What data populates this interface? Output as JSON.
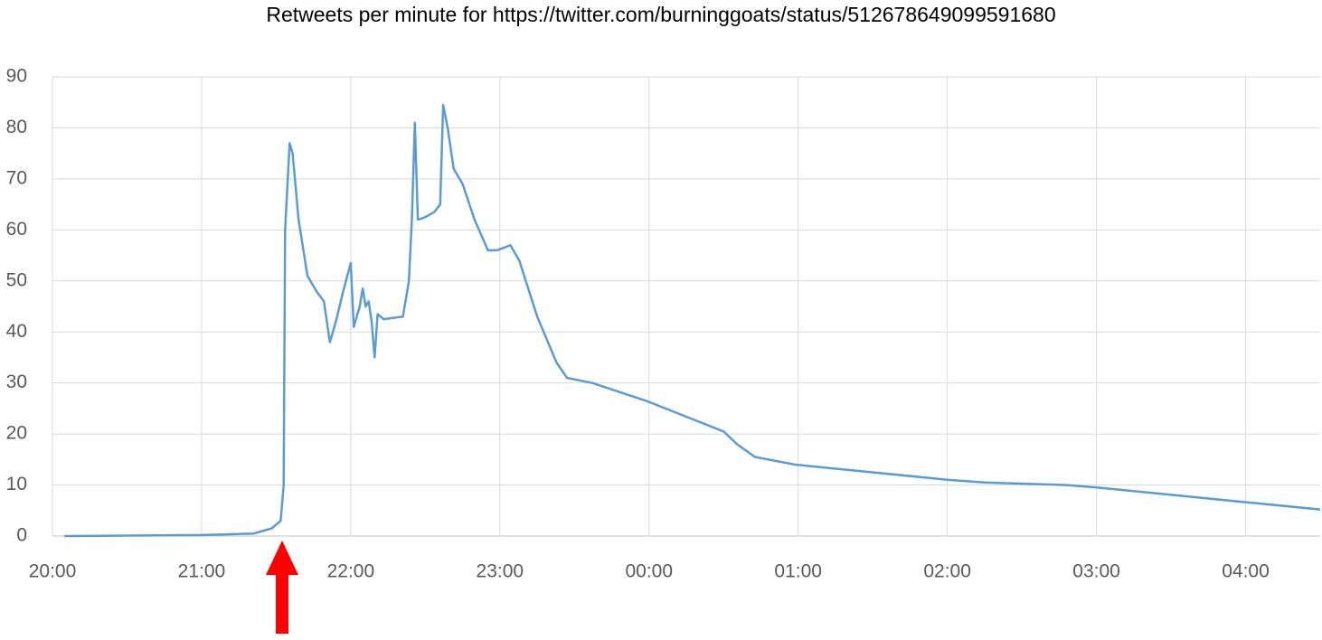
{
  "chart_data": {
    "type": "line",
    "title": "Retweets per minute for https://twitter.com/burninggoats/status/512678649099591680",
    "x": [
      0.08,
      1.0,
      1.35,
      1.47,
      1.53,
      1.55,
      1.56,
      1.59,
      1.61,
      1.65,
      1.71,
      1.77,
      1.82,
      1.86,
      1.9,
      1.95,
      2.0,
      2.02,
      2.06,
      2.08,
      2.1,
      2.12,
      2.14,
      2.16,
      2.18,
      2.22,
      2.35,
      2.39,
      2.41,
      2.43,
      2.45,
      2.5,
      2.56,
      2.6,
      2.62,
      2.65,
      2.69,
      2.75,
      2.83,
      2.92,
      2.98,
      3.07,
      3.13,
      3.25,
      3.38,
      3.45,
      3.62,
      3.98,
      4.5,
      4.59,
      4.71,
      4.98,
      6.01,
      6.25,
      6.8,
      7.01,
      8.01,
      8.5
    ],
    "values": [
      0,
      0.2,
      0.5,
      1.5,
      3,
      10,
      60,
      77,
      75,
      62,
      51,
      48,
      46,
      38,
      42,
      48,
      53.5,
      41,
      45,
      48.5,
      45,
      46,
      42,
      35,
      43.5,
      42.5,
      43,
      50,
      62,
      81,
      62,
      62.5,
      63.5,
      65,
      84.5,
      80,
      72,
      69,
      62,
      56,
      56,
      57,
      54,
      43,
      34,
      31,
      30,
      26.5,
      20.5,
      18,
      15.5,
      14,
      11,
      10.5,
      10,
      9.5,
      6.6,
      5.2
    ],
    "color": "#5b9bd5",
    "xlim": [
      0,
      8.5
    ],
    "xticks": [
      {
        "value": 0,
        "label": "20:00"
      },
      {
        "value": 1,
        "label": "21:00"
      },
      {
        "value": 2,
        "label": "22:00"
      },
      {
        "value": 3,
        "label": "23:00"
      },
      {
        "value": 4,
        "label": "00:00"
      },
      {
        "value": 5,
        "label": "01:00"
      },
      {
        "value": 6,
        "label": "02:00"
      },
      {
        "value": 7,
        "label": "03:00"
      },
      {
        "value": 8,
        "label": "04:00"
      }
    ],
    "ylim": [
      0,
      90
    ],
    "yticks": [
      0,
      10,
      20,
      30,
      40,
      50,
      60,
      70,
      80,
      90
    ],
    "grid": true
  }
}
